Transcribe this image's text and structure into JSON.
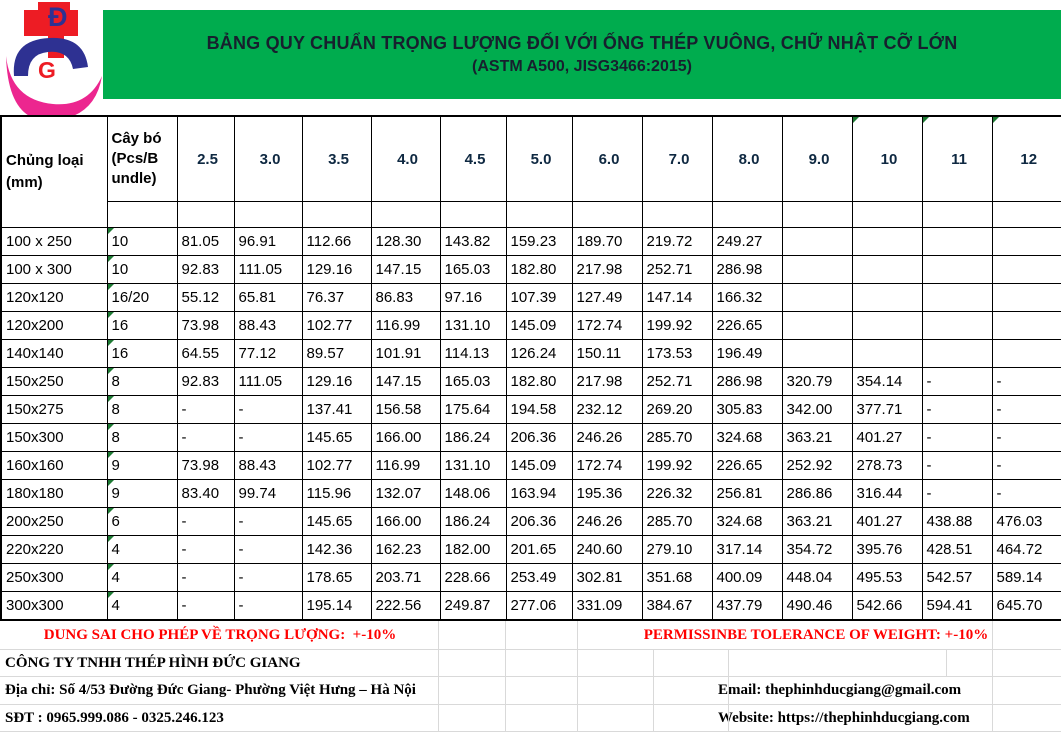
{
  "colors": {
    "banner_green": "#00AC4E",
    "header_cyan": "#00AEEF",
    "highlight_yellow": "#FFFF00",
    "alert_red": "#FF0000",
    "grid_gray": "#D9D9D9",
    "indicator_green": "#1E7B34",
    "logo_red": "#ED1C24",
    "logo_navy": "#2E3192",
    "logo_pink": "#EC268F"
  },
  "logo": {
    "letter_top": "Đ",
    "letter_bottom": "G"
  },
  "banner": {
    "title": "BẢNG QUY CHUẨN TRỌNG LƯỢNG ĐỐI VỚI ỐNG THÉP VUÔNG, CHỮ NHẬT CỠ LỚN",
    "subtitle": "(ASTM A500, JISG3466:2015)"
  },
  "table": {
    "col1_header_lines": [
      "Chủng loại",
      "(mm)"
    ],
    "col2_header_lines": [
      "Cây bó",
      "(Pcs/B",
      "undle)"
    ],
    "thickness_headers": [
      "2.5",
      "3.0",
      "3.5",
      "4.0",
      "4.5",
      "5.0",
      "6.0",
      "7.0",
      "8.0",
      "9.0",
      "10",
      "11",
      "12"
    ],
    "rows": [
      {
        "size": "100 x 250",
        "bundle": "10",
        "values": [
          "81.05",
          "96.91",
          "112.66",
          "128.30",
          "143.82",
          "159.23",
          "189.70",
          "219.72",
          "249.27",
          "",
          "",
          "",
          ""
        ]
      },
      {
        "size": "100 x 300",
        "bundle": "10",
        "values": [
          "92.83",
          "111.05",
          "129.16",
          "147.15",
          "165.03",
          "182.80",
          "217.98",
          "252.71",
          "286.98",
          "",
          "",
          "",
          ""
        ]
      },
      {
        "size": "120x120",
        "bundle": "16/20",
        "values": [
          "55.12",
          "65.81",
          "76.37",
          "86.83",
          "97.16",
          "107.39",
          "127.49",
          "147.14",
          "166.32",
          "",
          "",
          "",
          ""
        ]
      },
      {
        "size": "120x200",
        "bundle": "16",
        "values": [
          "73.98",
          "88.43",
          "102.77",
          "116.99",
          "131.10",
          "145.09",
          "172.74",
          "199.92",
          "226.65",
          "",
          "",
          "",
          ""
        ]
      },
      {
        "size": "140x140",
        "bundle": "16",
        "values": [
          "64.55",
          "77.12",
          "89.57",
          "101.91",
          "114.13",
          "126.24",
          "150.11",
          "173.53",
          "196.49",
          "",
          "",
          "",
          ""
        ]
      },
      {
        "size": "150x250",
        "bundle": "8",
        "values": [
          "92.83",
          "111.05",
          "129.16",
          "147.15",
          "165.03",
          "182.80",
          "217.98",
          "252.71",
          "286.98",
          "320.79",
          "354.14",
          "-",
          "-"
        ]
      },
      {
        "size": "150x275",
        "bundle": "8",
        "values": [
          "-",
          "-",
          "137.41",
          "156.58",
          "175.64",
          "194.58",
          "232.12",
          "269.20",
          "305.83",
          "342.00",
          "377.71",
          "-",
          "-"
        ]
      },
      {
        "size": "150x300",
        "bundle": "8",
        "values": [
          "-",
          "-",
          "145.65",
          "166.00",
          "186.24",
          "206.36",
          "246.26",
          "285.70",
          "324.68",
          "363.21",
          "401.27",
          "-",
          "-"
        ]
      },
      {
        "size": "160x160",
        "bundle": "9",
        "values": [
          "73.98",
          "88.43",
          "102.77",
          "116.99",
          "131.10",
          "145.09",
          "172.74",
          "199.92",
          "226.65",
          "252.92",
          "278.73",
          "-",
          "-"
        ]
      },
      {
        "size": "180x180",
        "bundle": "9",
        "values": [
          "83.40",
          "99.74",
          "115.96",
          "132.07",
          "148.06",
          "163.94",
          "195.36",
          "226.32",
          "256.81",
          "286.86",
          "316.44",
          "-",
          "-"
        ]
      },
      {
        "size": "200x250",
        "bundle": "6",
        "values": [
          "-",
          "-",
          "145.65",
          "166.00",
          "186.24",
          "206.36",
          "246.26",
          "285.70",
          "324.68",
          "363.21",
          "401.27",
          "438.88",
          "476.03"
        ]
      },
      {
        "size": "220x220",
        "bundle": "4",
        "values": [
          "-",
          "-",
          "142.36",
          "162.23",
          "182.00",
          "201.65",
          "240.60",
          "279.10",
          "317.14",
          "354.72",
          "395.76",
          "428.51",
          "464.72"
        ]
      },
      {
        "size": "250x300",
        "bundle": "4",
        "values": [
          "-",
          "-",
          "178.65",
          "203.71",
          "228.66",
          "253.49",
          "302.81",
          "351.68",
          "400.09",
          "448.04",
          "495.53",
          "542.57",
          "589.14"
        ]
      },
      {
        "size": "300x300",
        "bundle": "4",
        "values": [
          "-",
          "-",
          "195.14",
          "222.56",
          "249.87",
          "277.06",
          "331.09",
          "384.67",
          "437.79",
          "490.46",
          "542.66",
          "594.41",
          "645.70"
        ]
      }
    ]
  },
  "footer": {
    "tolerance_vi": "DUNG SAI CHO PHÉP VỀ TRỌNG LƯỢNG:  +-10%",
    "tolerance_en": "PERMISSINBE TOLERANCE OF WEIGHT: +-10%",
    "company": "CÔNG TY TNHH THÉP HÌNH ĐỨC GIANG",
    "address": "Địa chỉ: Số 4/53 Đường Đức Giang- Phường Việt Hưng – Hà Nội",
    "phone": "SĐT : 0965.999.086 - 0325.246.123",
    "email": "Email: thephinhducgiang@gmail.com",
    "website": "Website: https://thephinhducgiang.com"
  }
}
